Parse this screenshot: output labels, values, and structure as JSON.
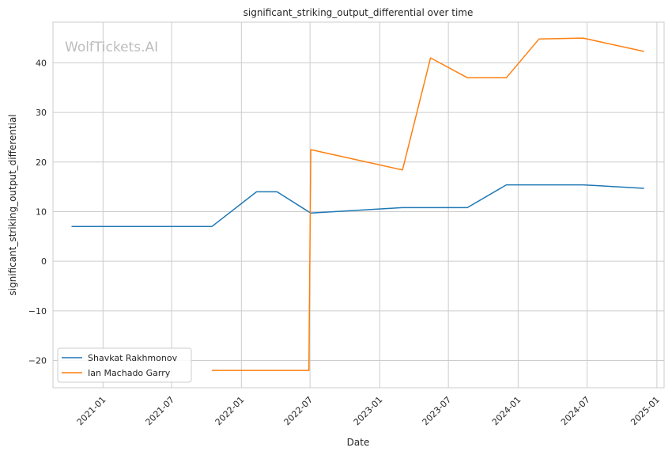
{
  "watermark": "WolfTickets.AI",
  "chart_data": {
    "type": "line",
    "title": "significant_striking_output_differential over time",
    "xlabel": "Date",
    "ylabel": "significant_striking_output_differential",
    "xlim": [
      "2020-08-22",
      "2025-01-20"
    ],
    "ylim": [
      -25.5,
      48.2
    ],
    "x_ticks": [
      "2021-01",
      "2021-07",
      "2022-01",
      "2022-07",
      "2023-01",
      "2023-07",
      "2024-01",
      "2024-07",
      "2025-01"
    ],
    "y_ticks": [
      -20,
      -10,
      0,
      10,
      20,
      30,
      40
    ],
    "grid": true,
    "legend_position": "lower-left",
    "series": [
      {
        "name": "Shavkat Rakhmonov",
        "color": "#1f77b4",
        "points": [
          {
            "x": "2020-10-10",
            "y": 7.0
          },
          {
            "x": "2021-10-15",
            "y": 7.0
          },
          {
            "x": "2022-02-10",
            "y": 14.0
          },
          {
            "x": "2022-04-05",
            "y": 14.0
          },
          {
            "x": "2022-07-03",
            "y": 9.7
          },
          {
            "x": "2023-03-02",
            "y": 10.8
          },
          {
            "x": "2023-08-20",
            "y": 10.8
          },
          {
            "x": "2023-12-01",
            "y": 15.4
          },
          {
            "x": "2024-06-20",
            "y": 15.4
          },
          {
            "x": "2024-11-28",
            "y": 14.7
          }
        ]
      },
      {
        "name": "Ian Machado Garry",
        "color": "#ff7f0e",
        "points": [
          {
            "x": "2021-10-15",
            "y": -22.0
          },
          {
            "x": "2022-06-28",
            "y": -22.0
          },
          {
            "x": "2022-07-03",
            "y": 22.5
          },
          {
            "x": "2023-03-02",
            "y": 18.4
          },
          {
            "x": "2023-05-15",
            "y": 41.0
          },
          {
            "x": "2023-08-20",
            "y": 37.0
          },
          {
            "x": "2023-12-01",
            "y": 37.0
          },
          {
            "x": "2024-02-25",
            "y": 44.8
          },
          {
            "x": "2024-06-20",
            "y": 45.0
          },
          {
            "x": "2024-11-28",
            "y": 42.3
          }
        ]
      }
    ]
  }
}
